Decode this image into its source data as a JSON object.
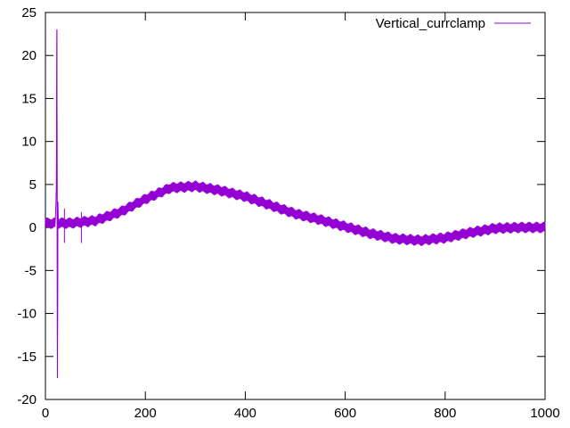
{
  "chart_data": {
    "type": "line",
    "title": "",
    "xlabel": "",
    "ylabel": "",
    "xlim": [
      0,
      1000
    ],
    "ylim": [
      -20,
      25
    ],
    "xticks": [
      0,
      200,
      400,
      600,
      800,
      1000
    ],
    "yticks": [
      -20,
      -15,
      -10,
      -5,
      0,
      5,
      10,
      15,
      20,
      25
    ],
    "xtick_labels": [
      "0",
      "200",
      "400",
      "600",
      "800",
      "1000"
    ],
    "ytick_labels": [
      "-20",
      "-15",
      "-10",
      "-5",
      "0",
      "5",
      "10",
      "15",
      "20",
      "25"
    ],
    "grid": false,
    "legend_position": "top-right",
    "series": [
      {
        "name": "Vertical_currclamp",
        "color": "#9400d3",
        "noise_band": 1.1,
        "x": [
          0,
          20,
          22,
          23,
          24,
          25,
          26,
          28,
          50,
          100,
          150,
          200,
          250,
          300,
          350,
          400,
          450,
          500,
          550,
          600,
          650,
          700,
          750,
          800,
          850,
          900,
          950,
          1000
        ],
        "y": [
          0.5,
          0.5,
          5,
          23,
          -17.5,
          3,
          0.5,
          0.5,
          0.5,
          0.8,
          1.8,
          3.3,
          4.6,
          4.8,
          4.3,
          3.6,
          2.6,
          1.6,
          0.9,
          0.1,
          -0.7,
          -1.3,
          -1.5,
          -1.2,
          -0.6,
          -0.1,
          0.0,
          0.0
        ]
      }
    ]
  }
}
